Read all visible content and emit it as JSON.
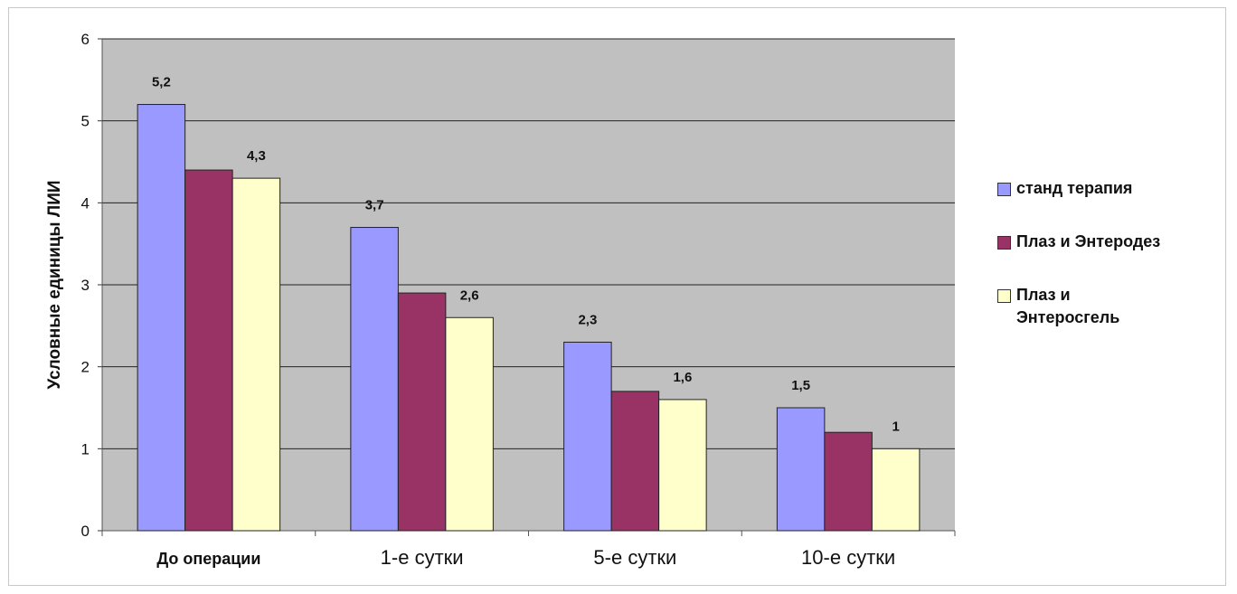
{
  "chart_data": {
    "type": "bar",
    "title": "",
    "xlabel": "",
    "ylabel": "Условные единицы ЛИИ",
    "ylim": [
      0,
      6
    ],
    "yticks": [
      "0",
      "1",
      "2",
      "3",
      "4",
      "5",
      "6"
    ],
    "grid": true,
    "legend_position": "right",
    "plot_background": "#c0c0c0",
    "categories": [
      "До операции",
      "1-е сутки",
      "5-е сутки",
      "10-е сутки"
    ],
    "series": [
      {
        "name": "станд терапия",
        "color": "#9999ff",
        "values": [
          5.2,
          3.7,
          2.3,
          1.5
        ],
        "labels": [
          "5,2",
          "3,7",
          "2,3",
          "1,5"
        ]
      },
      {
        "name": "Плаз и Энтеродез",
        "color": "#993366",
        "values": [
          4.4,
          2.9,
          1.7,
          1.2
        ],
        "labels": [
          "",
          "",
          "",
          ""
        ]
      },
      {
        "name": "Плаз и Энтеросгель",
        "color": "#ffffcc",
        "values": [
          4.3,
          2.6,
          1.6,
          1.0
        ],
        "labels": [
          "4,3",
          "2,6",
          "1,6",
          "1"
        ]
      }
    ]
  }
}
